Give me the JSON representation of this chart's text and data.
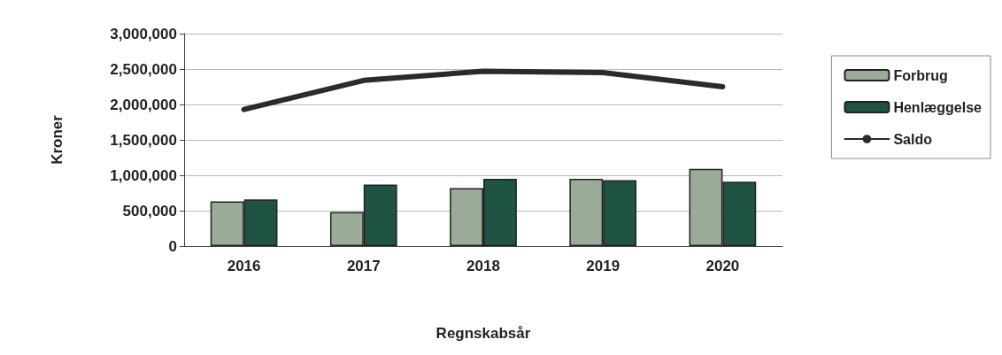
{
  "chart_data": {
    "type": "bar",
    "xlabel": "Regnskabsår",
    "ylabel": "Kroner",
    "categories": [
      "2016",
      "2017",
      "2018",
      "2019",
      "2020"
    ],
    "series": [
      {
        "name": "Forbrug",
        "color": "#9aab97",
        "values": [
          630000,
          480000,
          820000,
          950000,
          1090000
        ]
      },
      {
        "name": "Henlæggelse",
        "color": "#1f5444",
        "values": [
          660000,
          870000,
          950000,
          930000,
          910000
        ]
      },
      {
        "name": "Saldo",
        "type": "line",
        "color": "#2b2b2b",
        "values": [
          1930000,
          2340000,
          2470000,
          2450000,
          2250000
        ]
      }
    ],
    "ylim": [
      0,
      3000000
    ],
    "yticks": [
      {
        "value": 0,
        "label": "0"
      },
      {
        "value": 500000,
        "label": "500,000"
      },
      {
        "value": 1000000,
        "label": "1,000,000"
      },
      {
        "value": 1500000,
        "label": "1,500,000"
      },
      {
        "value": 2000000,
        "label": "2,000,000"
      },
      {
        "value": 2500000,
        "label": "2,500,000"
      },
      {
        "value": 3000000,
        "label": "3,000,000"
      }
    ],
    "grid": "y",
    "legend": "right",
    "marker": "none"
  }
}
